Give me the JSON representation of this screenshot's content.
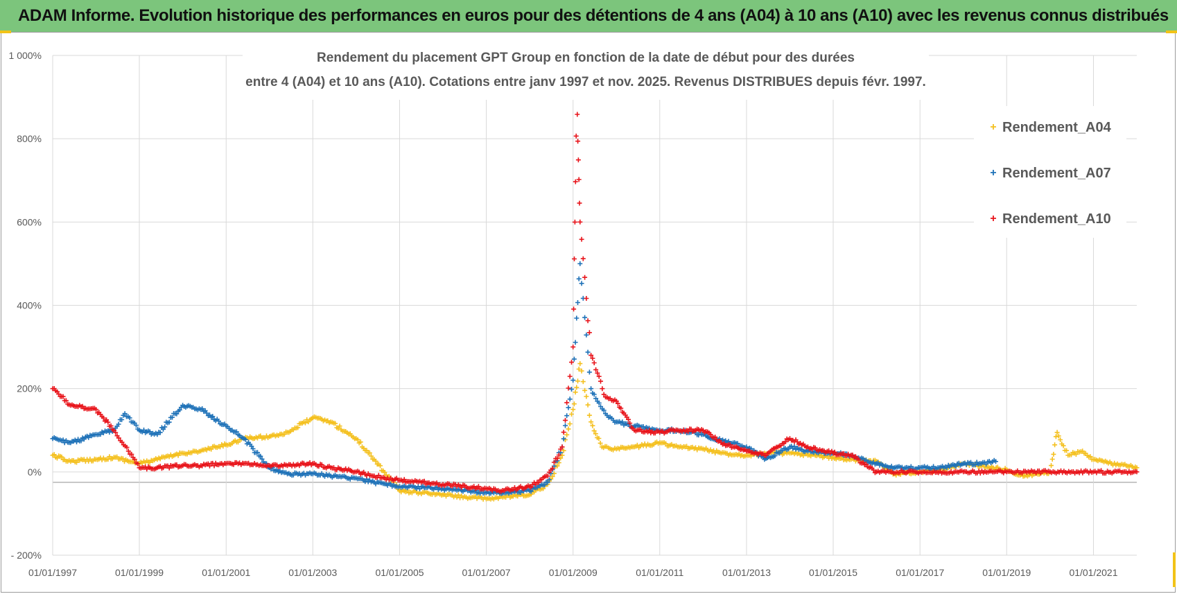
{
  "banner": {
    "title": "ADAM Informe. Evolution historique des performances en euros pour des détentions de 4 ans (A04) à 10 ans (A10) avec les revenus connus distribués",
    "bg_color": "#7cc57c",
    "corner_color": "#f2c318"
  },
  "chart_data": {
    "type": "scatter",
    "title_line1": "Rendement du placement GPT Group en fonction de la date de début pour des durées",
    "title_line2": "entre 4 (A04) et 10 ans (A10). Cotations entre janv 1997 et nov. 2025. Revenus DISTRIBUES depuis févr. 1997.",
    "xlabel": "",
    "ylabel": "",
    "x_range": [
      "1997-01-01",
      "2022-01-01"
    ],
    "ylim": [
      -200,
      1000
    ],
    "y_ticks": [
      1000,
      800,
      600,
      400,
      200,
      0,
      -200
    ],
    "y_tick_labels": [
      "1 000%",
      "800%",
      "600%",
      "400%",
      "200%",
      "0%",
      "- 200%"
    ],
    "x_tick_labels": [
      "01/01/1997",
      "01/01/1999",
      "01/01/2001",
      "01/01/2003",
      "01/01/2005",
      "01/01/2007",
      "01/01/2009",
      "01/01/2011",
      "01/01/2013",
      "01/01/2015",
      "01/01/2017",
      "01/01/2019",
      "01/01/2021"
    ],
    "marker": "+",
    "grid": true,
    "legend_position": "top-right",
    "series": [
      {
        "name": "Rendement_A04",
        "color": "#f4c01f",
        "points": [
          [
            "1997-01-01",
            40
          ],
          [
            "1997-06-01",
            25
          ],
          [
            "1998-01-01",
            30
          ],
          [
            "1998-06-01",
            35
          ],
          [
            "1999-01-01",
            20
          ],
          [
            "1999-06-01",
            30
          ],
          [
            "2000-01-01",
            45
          ],
          [
            "2000-06-01",
            50
          ],
          [
            "2001-01-01",
            65
          ],
          [
            "2001-06-01",
            80
          ],
          [
            "2002-01-01",
            85
          ],
          [
            "2002-06-01",
            95
          ],
          [
            "2003-01-01",
            130
          ],
          [
            "2003-06-01",
            120
          ],
          [
            "2004-01-01",
            80
          ],
          [
            "2004-06-01",
            30
          ],
          [
            "2005-01-01",
            -45
          ],
          [
            "2006-01-01",
            -55
          ],
          [
            "2007-01-01",
            -65
          ],
          [
            "2007-06-01",
            -60
          ],
          [
            "2008-01-01",
            -55
          ],
          [
            "2008-06-01",
            -30
          ],
          [
            "2008-10-01",
            40
          ],
          [
            "2009-01-01",
            150
          ],
          [
            "2009-03-01",
            260
          ],
          [
            "2009-06-01",
            120
          ],
          [
            "2009-09-01",
            60
          ],
          [
            "2010-01-01",
            55
          ],
          [
            "2010-06-01",
            60
          ],
          [
            "2011-01-01",
            70
          ],
          [
            "2011-06-01",
            60
          ],
          [
            "2012-01-01",
            55
          ],
          [
            "2012-06-01",
            45
          ],
          [
            "2013-01-01",
            40
          ],
          [
            "2013-06-01",
            45
          ],
          [
            "2014-01-01",
            45
          ],
          [
            "2014-06-01",
            40
          ],
          [
            "2015-01-01",
            35
          ],
          [
            "2015-06-01",
            30
          ],
          [
            "2016-01-01",
            25
          ],
          [
            "2016-06-01",
            -5
          ],
          [
            "2017-01-01",
            0
          ],
          [
            "2017-06-01",
            5
          ],
          [
            "2018-01-01",
            20
          ],
          [
            "2018-06-01",
            15
          ],
          [
            "2019-01-01",
            5
          ],
          [
            "2019-06-01",
            -10
          ],
          [
            "2020-01-01",
            0
          ],
          [
            "2020-03-01",
            95
          ],
          [
            "2020-06-01",
            40
          ],
          [
            "2020-10-01",
            50
          ],
          [
            "2021-01-01",
            30
          ],
          [
            "2021-06-01",
            20
          ],
          [
            "2022-01-01",
            10
          ]
        ]
      },
      {
        "name": "Rendement_A07",
        "color": "#1f72b8",
        "points": [
          [
            "1997-01-01",
            80
          ],
          [
            "1997-06-01",
            70
          ],
          [
            "1998-01-01",
            90
          ],
          [
            "1998-06-01",
            100
          ],
          [
            "1998-09-01",
            140
          ],
          [
            "1999-01-01",
            100
          ],
          [
            "1999-06-01",
            90
          ],
          [
            "2000-01-01",
            160
          ],
          [
            "2000-06-01",
            150
          ],
          [
            "2001-01-01",
            110
          ],
          [
            "2001-06-01",
            80
          ],
          [
            "2002-01-01",
            10
          ],
          [
            "2002-06-01",
            -5
          ],
          [
            "2003-01-01",
            -5
          ],
          [
            "2003-06-01",
            -10
          ],
          [
            "2004-01-01",
            -15
          ],
          [
            "2004-06-01",
            -25
          ],
          [
            "2005-01-01",
            -35
          ],
          [
            "2006-01-01",
            -40
          ],
          [
            "2007-01-01",
            -50
          ],
          [
            "2007-06-01",
            -50
          ],
          [
            "2008-01-01",
            -45
          ],
          [
            "2008-06-01",
            -25
          ],
          [
            "2008-10-01",
            60
          ],
          [
            "2009-01-01",
            220
          ],
          [
            "2009-03-01",
            500
          ],
          [
            "2009-06-01",
            200
          ],
          [
            "2009-10-01",
            140
          ],
          [
            "2010-01-01",
            120
          ],
          [
            "2010-06-01",
            110
          ],
          [
            "2011-01-01",
            100
          ],
          [
            "2011-06-01",
            100
          ],
          [
            "2012-01-01",
            90
          ],
          [
            "2012-06-01",
            75
          ],
          [
            "2013-01-01",
            60
          ],
          [
            "2013-06-01",
            30
          ],
          [
            "2014-01-01",
            60
          ],
          [
            "2014-06-01",
            50
          ],
          [
            "2015-01-01",
            45
          ],
          [
            "2015-06-01",
            40
          ],
          [
            "2016-01-01",
            20
          ],
          [
            "2016-06-01",
            10
          ],
          [
            "2017-01-01",
            10
          ],
          [
            "2017-06-01",
            10
          ],
          [
            "2018-01-01",
            20
          ],
          [
            "2018-06-01",
            20
          ],
          [
            "2018-10-01",
            25
          ]
        ]
      },
      {
        "name": "Rendement_A10",
        "color": "#e8141b",
        "points": [
          [
            "1997-01-01",
            200
          ],
          [
            "1997-06-01",
            160
          ],
          [
            "1998-01-01",
            150
          ],
          [
            "1998-06-01",
            100
          ],
          [
            "1998-10-01",
            50
          ],
          [
            "1999-01-01",
            10
          ],
          [
            "1999-06-01",
            10
          ],
          [
            "2000-01-01",
            15
          ],
          [
            "2000-06-01",
            15
          ],
          [
            "2001-01-01",
            20
          ],
          [
            "2001-06-01",
            20
          ],
          [
            "2002-01-01",
            15
          ],
          [
            "2002-06-01",
            15
          ],
          [
            "2003-01-01",
            20
          ],
          [
            "2003-06-01",
            10
          ],
          [
            "2004-01-01",
            0
          ],
          [
            "2004-06-01",
            -10
          ],
          [
            "2005-01-01",
            -20
          ],
          [
            "2006-01-01",
            -30
          ],
          [
            "2007-01-01",
            -40
          ],
          [
            "2007-06-01",
            -45
          ],
          [
            "2008-01-01",
            -35
          ],
          [
            "2008-06-01",
            -10
          ],
          [
            "2008-10-01",
            60
          ],
          [
            "2009-01-01",
            300
          ],
          [
            "2009-02-01",
            900
          ],
          [
            "2009-03-01",
            600
          ],
          [
            "2009-06-01",
            280
          ],
          [
            "2009-10-01",
            180
          ],
          [
            "2010-01-01",
            170
          ],
          [
            "2010-06-01",
            100
          ],
          [
            "2011-01-01",
            95
          ],
          [
            "2011-06-01",
            100
          ],
          [
            "2012-01-01",
            100
          ],
          [
            "2012-06-01",
            70
          ],
          [
            "2013-01-01",
            50
          ],
          [
            "2013-06-01",
            40
          ],
          [
            "2014-01-01",
            80
          ],
          [
            "2014-06-01",
            60
          ],
          [
            "2015-01-01",
            45
          ],
          [
            "2015-06-01",
            40
          ],
          [
            "2016-01-01",
            0
          ],
          [
            "2017-01-01",
            0
          ],
          [
            "2018-01-01",
            0
          ],
          [
            "2019-01-01",
            0
          ],
          [
            "2020-01-01",
            0
          ],
          [
            "2021-01-01",
            0
          ],
          [
            "2022-01-01",
            0
          ]
        ]
      }
    ]
  }
}
